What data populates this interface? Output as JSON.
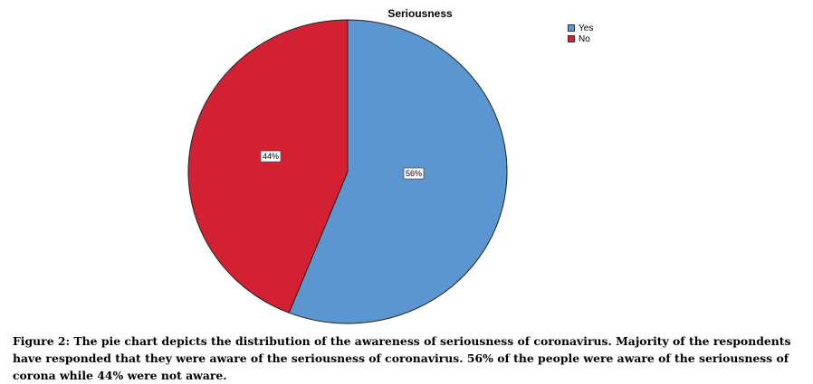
{
  "chart_data": {
    "type": "pie",
    "title": "Seriousness",
    "categories": [
      "Yes",
      "No"
    ],
    "values": [
      56,
      44
    ],
    "data_labels": [
      "56%",
      "44%"
    ],
    "colors": [
      "#5b96d0",
      "#d42033"
    ],
    "legend_position": "top-right"
  },
  "caption": {
    "text": "Figure 2: The pie chart depicts the distribution of the awareness of seriousness of coronavirus. Majority of the respondents have responded that they were aware of the seriousness of coronavirus. 56% of the people were aware of the seriousness of corona while 44% were not aware."
  }
}
